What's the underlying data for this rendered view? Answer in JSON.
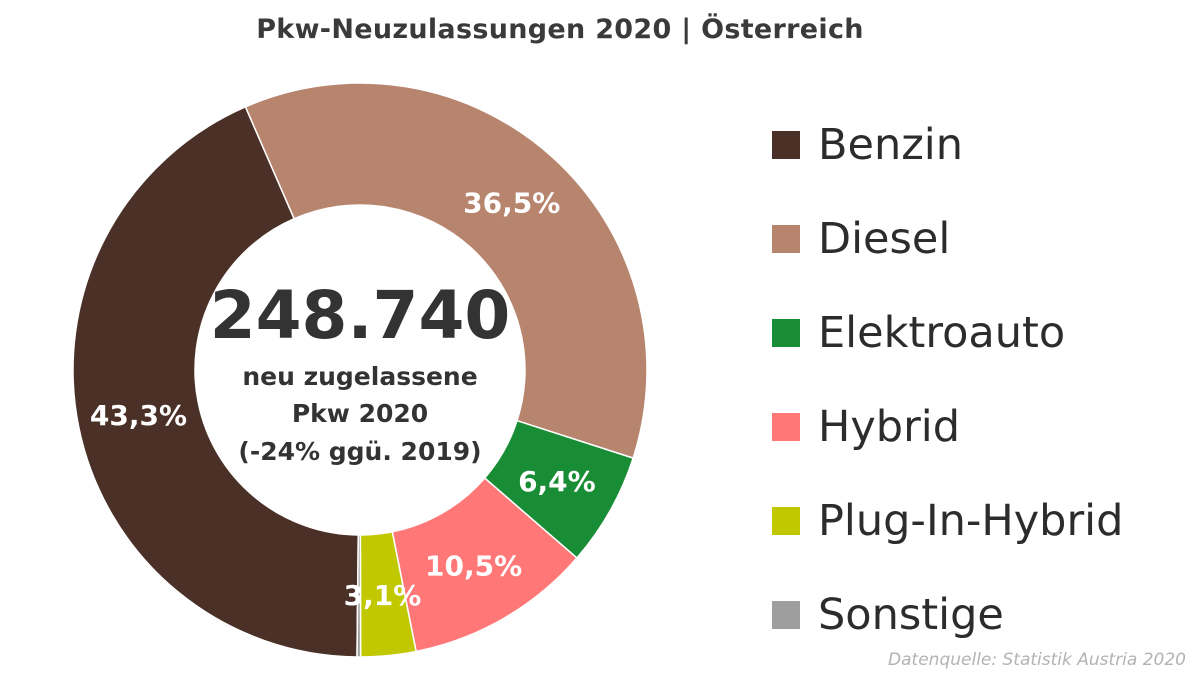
{
  "title": "Pkw-Neuzulassungen 2020 | Österreich",
  "center": {
    "total": "248.740",
    "line1": "neu zugelassene",
    "line2": "Pkw 2020",
    "line3": "(-24% ggü. 2019)"
  },
  "source": "Datenquelle: Statistik Austria 2020",
  "chart_data": {
    "type": "pie",
    "donut": true,
    "title": "Pkw-Neuzulassungen 2020 | Österreich",
    "legend_position": "right",
    "series": [
      {
        "name": "Benzin",
        "value": 43.3,
        "label": "43,3%",
        "color": "#4a3027"
      },
      {
        "name": "Diesel",
        "value": 36.5,
        "label": "36,5%",
        "color": "#b7846e"
      },
      {
        "name": "Elektroauto",
        "value": 6.4,
        "label": "6,4%",
        "color": "#198c36"
      },
      {
        "name": "Hybrid",
        "value": 10.5,
        "label": "10,5%",
        "color": "#ff7777"
      },
      {
        "name": "Plug-In-Hybrid",
        "value": 3.1,
        "label": "3,1%",
        "color": "#c1c800"
      },
      {
        "name": "Sonstige",
        "value": 0.2,
        "label": "",
        "color": "#9e9e9e"
      }
    ],
    "draw_order": [
      "Benzin",
      "Diesel",
      "Elektroauto",
      "Hybrid",
      "Plug-In-Hybrid",
      "Sonstige"
    ]
  }
}
